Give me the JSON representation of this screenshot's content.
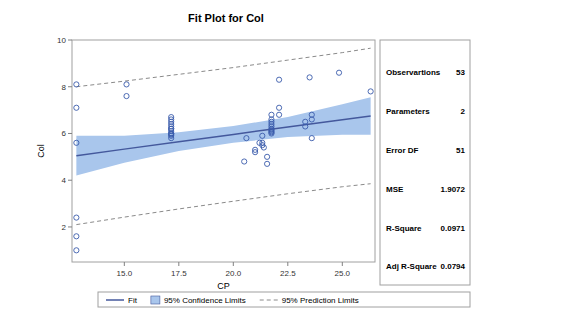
{
  "chart_data": {
    "type": "scatter",
    "title": "Fit Plot for Col",
    "x_label": "CP",
    "y_label": "Col",
    "xlim": [
      12.6,
      26.5
    ],
    "ylim": [
      0.5,
      10
    ],
    "xticks": [
      {
        "value": 15,
        "label": "15.0"
      },
      {
        "value": 17.5,
        "label": "17.5"
      },
      {
        "value": 20,
        "label": "20.0"
      },
      {
        "value": 22.5,
        "label": "22.5"
      },
      {
        "value": 25,
        "label": "25.0"
      }
    ],
    "yticks": [
      2,
      4,
      6,
      8,
      10
    ],
    "grid": false,
    "legend": "bottom",
    "series": [
      {
        "type": "scatter",
        "marker": "circle",
        "color": "#3a5bab",
        "x": [
          12.8,
          12.8,
          12.8,
          12.8,
          12.8,
          12.8,
          15.1,
          15.1,
          17.15,
          17.15,
          17.15,
          17.15,
          17.15,
          17.15,
          17.15,
          17.15,
          17.15,
          17.15,
          17.15,
          17.15,
          17.15,
          20.5,
          20.6,
          21.0,
          21.0,
          21.2,
          21.33,
          21.33,
          21.33,
          21.4,
          21.55,
          21.55,
          21.75,
          21.75,
          21.75,
          21.75,
          21.75,
          21.75,
          21.75,
          21.75,
          21.75,
          21.75,
          22.1,
          22.1,
          22.1,
          23.3,
          23.3,
          23.5,
          23.6,
          23.6,
          23.6,
          24.85,
          26.3
        ],
        "values": [
          8.1,
          7.1,
          5.6,
          2.4,
          1.6,
          1.0,
          8.1,
          7.6,
          5.8,
          5.9,
          5.95,
          6.0,
          6.0,
          6.1,
          6.2,
          6.2,
          6.3,
          6.4,
          6.5,
          6.6,
          6.7,
          4.8,
          5.8,
          5.3,
          5.2,
          5.6,
          5.5,
          5.6,
          5.9,
          5.4,
          4.7,
          5.0,
          6.0,
          6.05,
          6.1,
          6.15,
          6.2,
          6.3,
          6.4,
          6.5,
          6.6,
          6.8,
          8.3,
          7.1,
          6.8,
          6.3,
          6.5,
          8.4,
          6.6,
          5.8,
          6.8,
          8.6,
          7.8
        ]
      },
      {
        "name": "Fit",
        "type": "line",
        "line_style": "solid",
        "color": "#44589c",
        "x": [
          12.8,
          15,
          17.5,
          20,
          22.5,
          25,
          26.3
        ],
        "values": [
          5.05,
          5.33,
          5.65,
          5.96,
          6.28,
          6.59,
          6.75
        ]
      },
      {
        "name": "95% Confidence Limits",
        "type": "band",
        "color": "#a9c6ec",
        "x": [
          12.8,
          15,
          17.5,
          20,
          22.5,
          25,
          26.3
        ],
        "lower": [
          4.2,
          4.75,
          5.25,
          5.6,
          5.85,
          5.95,
          5.95
        ],
        "upper": [
          5.9,
          5.9,
          6.05,
          6.32,
          6.7,
          7.25,
          7.55
        ]
      },
      {
        "name": "95% Prediction Limits",
        "type": "band",
        "line_style": "dashed",
        "color": "#8a8a8a",
        "x": [
          12.8,
          15,
          17.5,
          20,
          22.5,
          25,
          26.3
        ],
        "lower": [
          2.1,
          2.42,
          2.77,
          3.1,
          3.42,
          3.72,
          3.85
        ],
        "upper": [
          8.0,
          8.24,
          8.53,
          8.82,
          9.14,
          9.46,
          9.65
        ]
      }
    ],
    "stats": [
      {
        "label": "Observartions",
        "value": 53
      },
      {
        "label": "Parameters",
        "value": 2
      },
      {
        "label": "Error DF",
        "value": 51
      },
      {
        "label": "MSE",
        "value": 1.9072
      },
      {
        "label": "R-Square",
        "value": 0.0971
      },
      {
        "label": "Adj R-Square",
        "value": 0.0794
      }
    ]
  }
}
